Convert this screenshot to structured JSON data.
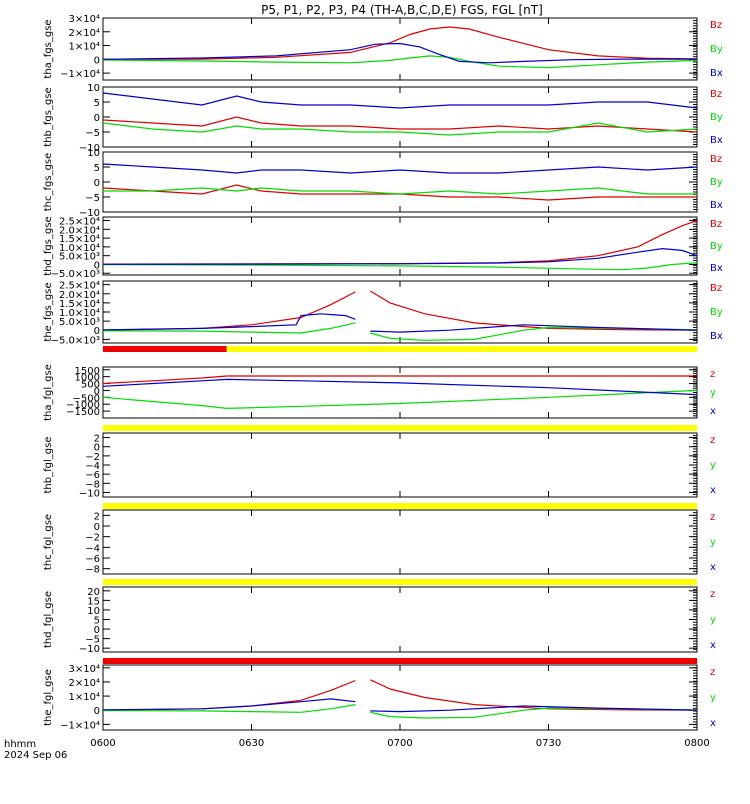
{
  "title": "P5, P1, P2, P3, P4 (TH-A,B,C,D,E) FGS, FGL [nT]",
  "footer": {
    "axis_label": "hhmm",
    "date": "2024 Sep 06"
  },
  "colors": {
    "red": "#dd0000",
    "green": "#00dd00",
    "blue": "#0000cc",
    "bar_yellow": "#ffff00",
    "bar_red": "#ee0000"
  },
  "x_axis": {
    "range_minutes": [
      0,
      120
    ],
    "ticks": [
      {
        "m": 0,
        "label": "0600"
      },
      {
        "m": 30,
        "label": "0630"
      },
      {
        "m": 60,
        "label": "0700"
      },
      {
        "m": 90,
        "label": "0730"
      },
      {
        "m": 120,
        "label": "0800"
      }
    ]
  },
  "chart_data": [
    {
      "type": "line",
      "ylabel": "tha_fgs_gse",
      "ylim": [
        -15000,
        30000
      ],
      "yticks": [
        {
          "v": 30000,
          "label": "3×10⁴"
        },
        {
          "v": 20000,
          "label": "2×10⁴"
        },
        {
          "v": 10000,
          "label": "1×10⁴"
        },
        {
          "v": 0,
          "label": "0"
        },
        {
          "v": -10000,
          "label": "−1×10⁴"
        }
      ],
      "legend": [
        "Bz",
        "By",
        "Bx"
      ],
      "series": [
        {
          "name": "Bz",
          "color": "red",
          "x": [
            0,
            20,
            35,
            50,
            58,
            62,
            66,
            70,
            74,
            80,
            90,
            100,
            110,
            120
          ],
          "y": [
            0,
            200,
            1500,
            5000,
            12000,
            18000,
            22000,
            23500,
            22000,
            16000,
            7000,
            2500,
            800,
            300
          ]
        },
        {
          "name": "By",
          "color": "green",
          "x": [
            0,
            20,
            35,
            50,
            58,
            62,
            66,
            70,
            74,
            80,
            90,
            100,
            110,
            120
          ],
          "y": [
            -500,
            -1200,
            -2000,
            -2500,
            -800,
            1000,
            2500,
            1500,
            -1500,
            -5000,
            -6000,
            -4000,
            -2000,
            -800
          ]
        },
        {
          "name": "Bx",
          "color": "blue",
          "x": [
            0,
            20,
            35,
            50,
            55,
            60,
            64,
            68,
            72,
            78,
            85,
            95,
            105,
            120
          ],
          "y": [
            0,
            1000,
            2500,
            7000,
            11000,
            11500,
            9000,
            3500,
            -1500,
            -2500,
            -1500,
            -300,
            200,
            200
          ]
        }
      ]
    },
    {
      "type": "line",
      "ylabel": "thb_fgs_gse",
      "ylim": [
        -10,
        10
      ],
      "yticks": [
        {
          "v": 10,
          "label": "10"
        },
        {
          "v": 5,
          "label": "5"
        },
        {
          "v": 0,
          "label": "0"
        },
        {
          "v": -5,
          "label": "−5"
        },
        {
          "v": -10,
          "label": "−10"
        }
      ],
      "legend": [
        "Bz",
        "By",
        "Bx"
      ],
      "series": [
        {
          "name": "Bz",
          "color": "red",
          "x": [
            0,
            10,
            20,
            27,
            32,
            40,
            50,
            60,
            70,
            80,
            90,
            100,
            110,
            120
          ],
          "y": [
            -1,
            -2,
            -3,
            0,
            -2,
            -3,
            -3,
            -4,
            -4,
            -3,
            -4,
            -3,
            -4,
            -5
          ]
        },
        {
          "name": "By",
          "color": "green",
          "x": [
            0,
            10,
            20,
            27,
            32,
            40,
            50,
            60,
            70,
            80,
            90,
            100,
            110,
            120
          ],
          "y": [
            -2,
            -4,
            -5,
            -3,
            -4,
            -4,
            -5,
            -5,
            -6,
            -5,
            -5,
            -2,
            -5,
            -4
          ]
        },
        {
          "name": "Bx",
          "color": "blue",
          "x": [
            0,
            10,
            20,
            27,
            32,
            40,
            50,
            60,
            70,
            80,
            90,
            100,
            110,
            120
          ],
          "y": [
            8,
            6,
            4,
            7,
            5,
            4,
            4,
            3,
            4,
            4,
            4,
            5,
            5,
            3
          ]
        }
      ]
    },
    {
      "type": "line",
      "ylabel": "thc_fgs_gse",
      "ylim": [
        -10,
        10
      ],
      "yticks": [
        {
          "v": 10,
          "label": "10"
        },
        {
          "v": 5,
          "label": "5"
        },
        {
          "v": 0,
          "label": "0"
        },
        {
          "v": -5,
          "label": "−5"
        },
        {
          "v": -10,
          "label": "−10"
        }
      ],
      "legend": [
        "Bz",
        "By",
        "Bx"
      ],
      "series": [
        {
          "name": "Bz",
          "color": "red",
          "x": [
            0,
            10,
            20,
            27,
            32,
            40,
            50,
            60,
            70,
            80,
            90,
            100,
            110,
            120
          ],
          "y": [
            -2,
            -3,
            -4,
            -1,
            -3,
            -4,
            -4,
            -4,
            -5,
            -5,
            -6,
            -5,
            -5,
            -5
          ]
        },
        {
          "name": "By",
          "color": "green",
          "x": [
            0,
            10,
            20,
            27,
            32,
            40,
            50,
            60,
            70,
            80,
            90,
            100,
            110,
            120
          ],
          "y": [
            -3,
            -3,
            -2,
            -3,
            -2,
            -3,
            -3,
            -4,
            -3,
            -4,
            -3,
            -2,
            -4,
            -4
          ]
        },
        {
          "name": "Bx",
          "color": "blue",
          "x": [
            0,
            10,
            20,
            27,
            32,
            40,
            50,
            60,
            70,
            80,
            90,
            100,
            110,
            120
          ],
          "y": [
            6,
            5,
            4,
            3,
            4,
            4,
            3,
            4,
            3,
            3,
            4,
            5,
            4,
            5
          ]
        }
      ]
    },
    {
      "type": "line",
      "ylabel": "thd_fgs_gse",
      "ylim": [
        -6000,
        27000
      ],
      "yticks": [
        {
          "v": 25000,
          "label": "2.5×10⁴"
        },
        {
          "v": 20000,
          "label": "2.0×10⁴"
        },
        {
          "v": 15000,
          "label": "1.5×10⁴"
        },
        {
          "v": 10000,
          "label": "1.0×10⁴"
        },
        {
          "v": 5000,
          "label": "5.0×10³"
        },
        {
          "v": 0,
          "label": "0"
        },
        {
          "v": -5000,
          "label": "−5.0×10³"
        }
      ],
      "legend": [
        "Bz",
        "By",
        "Bx"
      ],
      "series": [
        {
          "name": "Bz",
          "color": "red",
          "x": [
            0,
            30,
            60,
            80,
            90,
            100,
            108,
            113,
            117,
            120
          ],
          "y": [
            200,
            300,
            500,
            1000,
            2000,
            5000,
            10000,
            17000,
            22000,
            25000
          ]
        },
        {
          "name": "By",
          "color": "green",
          "x": [
            0,
            30,
            60,
            80,
            95,
            105,
            110,
            115,
            120
          ],
          "y": [
            -100,
            -300,
            -800,
            -1500,
            -2500,
            -3000,
            -2000,
            0,
            1000
          ]
        },
        {
          "name": "Bx",
          "color": "blue",
          "x": [
            0,
            30,
            60,
            80,
            90,
            100,
            108,
            113,
            117,
            120
          ],
          "y": [
            100,
            200,
            400,
            800,
            1500,
            3500,
            7000,
            9000,
            8000,
            5000
          ]
        }
      ]
    },
    {
      "type": "line",
      "ylabel": "the_fgs_gse",
      "ylim": [
        -7000,
        27000
      ],
      "yticks": [
        {
          "v": 25000,
          "label": "2.5×10⁴"
        },
        {
          "v": 20000,
          "label": "2.0×10⁴"
        },
        {
          "v": 15000,
          "label": "1.5×10⁴"
        },
        {
          "v": 10000,
          "label": "1.0×10⁴"
        },
        {
          "v": 5000,
          "label": "5.0×10³"
        },
        {
          "v": 0,
          "label": "0"
        },
        {
          "v": -5000,
          "label": "−5.0×10³"
        }
      ],
      "legend": [
        "Bz",
        "By",
        "Bx"
      ],
      "series": [
        {
          "name": "Bz",
          "color": "red",
          "x": [
            0,
            20,
            30,
            40,
            46,
            51,
            null,
            54,
            58,
            65,
            75,
            90,
            105,
            120
          ],
          "y": [
            0,
            1000,
            3000,
            7000,
            14000,
            21000,
            null,
            21500,
            15000,
            9000,
            4000,
            1000,
            300,
            100
          ]
        },
        {
          "name": "By",
          "color": "green",
          "x": [
            0,
            20,
            30,
            40,
            46,
            51,
            null,
            54,
            58,
            65,
            75,
            85,
            90,
            105,
            120
          ],
          "y": [
            -300,
            -500,
            -1000,
            -1500,
            1000,
            4000,
            null,
            -1500,
            -4500,
            -5500,
            -5000,
            0,
            1500,
            1000,
            200
          ]
        },
        {
          "name": "Bx",
          "color": "blue",
          "x": [
            0,
            20,
            30,
            39,
            40,
            44,
            49,
            51,
            null,
            54,
            60,
            70,
            85,
            100,
            120
          ],
          "y": [
            200,
            1000,
            2000,
            3000,
            8000,
            9000,
            8000,
            6000,
            null,
            -500,
            -1000,
            0,
            3000,
            1500,
            0
          ]
        }
      ]
    },
    {
      "type": "line",
      "ylabel": "tha_fgl_gse",
      "ylim": [
        -2000,
        1700
      ],
      "bar": {
        "segments": [
          {
            "from": 0,
            "to": 25,
            "color": "bar_red"
          },
          {
            "from": 25,
            "to": 120,
            "color": "bar_yellow"
          }
        ]
      },
      "yticks": [
        {
          "v": 1500,
          "label": "1500"
        },
        {
          "v": 1000,
          "label": "1000"
        },
        {
          "v": 500,
          "label": "500"
        },
        {
          "v": 0,
          "label": "0"
        },
        {
          "v": -500,
          "label": "−500"
        },
        {
          "v": -1000,
          "label": "−1000"
        },
        {
          "v": -1500,
          "label": "−1500"
        }
      ],
      "legend": [
        "z",
        "y",
        "x"
      ],
      "series": [
        {
          "name": "z",
          "color": "red",
          "x": [
            0,
            10,
            20,
            25,
            35,
            60,
            90,
            120
          ],
          "y": [
            500,
            700,
            900,
            1050,
            1050,
            1050,
            1050,
            1050
          ]
        },
        {
          "name": "y",
          "color": "green",
          "x": [
            0,
            10,
            20,
            25,
            40,
            60,
            90,
            120
          ],
          "y": [
            -500,
            -800,
            -1100,
            -1300,
            -1150,
            -950,
            -500,
            0
          ]
        },
        {
          "name": "x",
          "color": "blue",
          "x": [
            0,
            10,
            20,
            25,
            40,
            60,
            90,
            120
          ],
          "y": [
            300,
            500,
            700,
            800,
            700,
            550,
            200,
            -300
          ]
        }
      ]
    },
    {
      "type": "line",
      "ylabel": "thb_fgl_gse",
      "ylim": [
        -11,
        3
      ],
      "bar": {
        "segments": [
          {
            "from": 0,
            "to": 120,
            "color": "bar_yellow"
          }
        ]
      },
      "yticks": [
        {
          "v": 2,
          "label": "2"
        },
        {
          "v": 0,
          "label": "0"
        },
        {
          "v": -2,
          "label": "−2"
        },
        {
          "v": -4,
          "label": "−4"
        },
        {
          "v": -6,
          "label": "−6"
        },
        {
          "v": -8,
          "label": "−8"
        },
        {
          "v": -10,
          "label": "−10"
        }
      ],
      "legend": [
        "z",
        "y",
        "x"
      ],
      "series": []
    },
    {
      "type": "line",
      "ylabel": "thc_fgl_gse",
      "ylim": [
        -9,
        3
      ],
      "bar": {
        "segments": [
          {
            "from": 0,
            "to": 120,
            "color": "bar_yellow"
          }
        ]
      },
      "yticks": [
        {
          "v": 2,
          "label": "2"
        },
        {
          "v": 0,
          "label": "0"
        },
        {
          "v": -2,
          "label": "−2"
        },
        {
          "v": -4,
          "label": "−4"
        },
        {
          "v": -6,
          "label": "−6"
        },
        {
          "v": -8,
          "label": "−8"
        }
      ],
      "legend": [
        "z",
        "y",
        "x"
      ],
      "series": []
    },
    {
      "type": "line",
      "ylabel": "thd_fgl_gse",
      "ylim": [
        -12,
        22
      ],
      "bar": {
        "segments": [
          {
            "from": 0,
            "to": 120,
            "color": "bar_yellow"
          }
        ]
      },
      "yticks": [
        {
          "v": 20,
          "label": "20"
        },
        {
          "v": 15,
          "label": "15"
        },
        {
          "v": 10,
          "label": "10"
        },
        {
          "v": 5,
          "label": "5"
        },
        {
          "v": 0,
          "label": "0"
        },
        {
          "v": -5,
          "label": "−5"
        },
        {
          "v": -10,
          "label": "−10"
        }
      ],
      "legend": [
        "z",
        "y",
        "x"
      ],
      "series": []
    },
    {
      "type": "line",
      "ylabel": "the_fgl_gse",
      "ylim": [
        -14000,
        32000
      ],
      "bar": {
        "segments": [
          {
            "from": 0,
            "to": 120,
            "color": "bar_red"
          }
        ]
      },
      "yticks": [
        {
          "v": 30000,
          "label": "3×10⁴"
        },
        {
          "v": 20000,
          "label": "2×10⁴"
        },
        {
          "v": 10000,
          "label": "1×10⁴"
        },
        {
          "v": 0,
          "label": "0"
        },
        {
          "v": -10000,
          "label": "−1×10⁴"
        }
      ],
      "legend": [
        "z",
        "y",
        "x"
      ],
      "series": [
        {
          "name": "z",
          "color": "red",
          "x": [
            0,
            20,
            30,
            40,
            46,
            51,
            null,
            54,
            58,
            65,
            75,
            90,
            105,
            120
          ],
          "y": [
            0,
            1000,
            3000,
            7000,
            14000,
            21000,
            null,
            21500,
            15000,
            9000,
            4000,
            1000,
            300,
            100
          ]
        },
        {
          "name": "y",
          "color": "green",
          "x": [
            0,
            20,
            30,
            40,
            46,
            51,
            null,
            54,
            58,
            65,
            75,
            85,
            90,
            105,
            120
          ],
          "y": [
            -300,
            -500,
            -1000,
            -1500,
            1000,
            4000,
            null,
            -1500,
            -4500,
            -5500,
            -5000,
            0,
            1500,
            1000,
            200
          ]
        },
        {
          "name": "x",
          "color": "blue",
          "x": [
            0,
            20,
            30,
            40,
            46,
            51,
            null,
            54,
            60,
            70,
            85,
            100,
            120
          ],
          "y": [
            200,
            1000,
            3000,
            6000,
            8000,
            6000,
            null,
            -500,
            -1000,
            0,
            3000,
            1500,
            0
          ]
        }
      ]
    }
  ]
}
